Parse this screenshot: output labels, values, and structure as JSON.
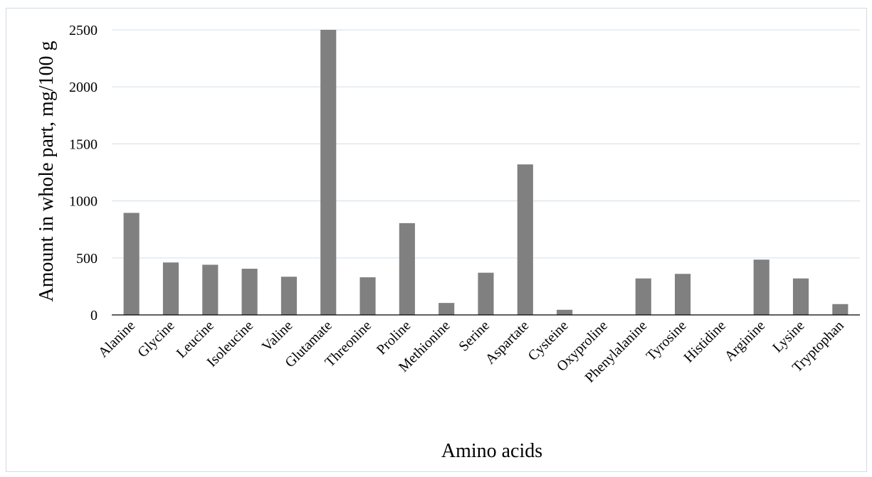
{
  "chart_data": {
    "type": "bar",
    "categories": [
      "Alanine",
      "Glycine",
      "Leucine",
      "Isoleucine",
      "Valine",
      "Glutamate",
      "Threonine",
      "Proline",
      "Methionine",
      "Serine",
      "Aspartate",
      "Cysteine",
      "Oxyproline",
      "Phenylalanine",
      "Tyrosine",
      "Histidine",
      "Arginine",
      "Lysine",
      "Tryptophan"
    ],
    "values": [
      895,
      460,
      440,
      405,
      335,
      2500,
      330,
      805,
      105,
      370,
      1320,
      45,
      0,
      320,
      360,
      0,
      485,
      320,
      95
    ],
    "title": "",
    "xlabel": "Amino acids",
    "ylabel": "Amount in whole part, mg/100 g",
    "ylim": [
      0,
      2500
    ],
    "yticks": [
      0,
      500,
      1000,
      1500,
      2000,
      2500
    ],
    "grid": true,
    "bar_color": "#808080",
    "grid_color": "#d9e3ec"
  }
}
